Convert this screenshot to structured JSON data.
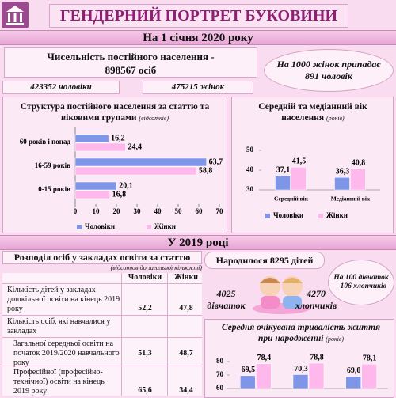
{
  "header": {
    "title": "ГЕНДЕРНИЙ ПОРТРЕТ БУКОВИНИ",
    "date_banner": "На 1 січня 2020 року"
  },
  "population": {
    "label": "Чисельність постійного населення  -",
    "total": "898567 осіб",
    "men": "423352 чоловіки",
    "women": "475215 жінок",
    "ratio": "На 1000 жінок припадає",
    "ratio_value": "891 чоловік"
  },
  "year_banner": "У 2019 році",
  "education": {
    "title": "Розподіл осіб у закладах освіти за статтю",
    "subtitle": "(відсотків до загальної кількості)",
    "columns": [
      "Чоловіки",
      "Жінки"
    ],
    "rows": [
      [
        "Кількість дітей у закладах дошкільної освіти на кінець 2019 року",
        "52,2",
        "47,8"
      ],
      [
        "Кількість осіб, які навчалися у закладах"
      ],
      [
        "Загальної середньої освіти на початок 2019/2020 навчального року",
        "51,3",
        "48,7"
      ],
      [
        "Професійної (професійно-технічної) освіти на кінець 2019 року",
        "65,6",
        "34,4"
      ]
    ]
  },
  "births": {
    "total": "Народилося 8295 дітей",
    "girls": "4025 дівчаток",
    "boys": "4270 хлопчиків",
    "ratio": "На 100 дівчаток - 106 хлопчиків"
  },
  "chart_data": [
    {
      "type": "bar",
      "orientation": "horizontal",
      "title": "Структура постійного населення за статтю та віковими групами",
      "subtitle": "(відсотків)",
      "categories": [
        "60 років і понад",
        "16-59 років",
        "0-15 років"
      ],
      "series": [
        {
          "name": "Чоловіки",
          "color": "#7f95e8",
          "values": [
            16.2,
            63.7,
            20.1
          ],
          "value_labels": [
            "16,2",
            "63,7",
            "20,1"
          ]
        },
        {
          "name": "Жінки",
          "color": "#ffb8ec",
          "values": [
            24.4,
            58.8,
            16.8
          ],
          "value_labels": [
            "24,4",
            "58,8",
            "16,8"
          ]
        }
      ],
      "xlim": [
        0,
        70
      ],
      "xticks": [
        0,
        10,
        20,
        30,
        40,
        50,
        60,
        70
      ],
      "legend": "bottom"
    },
    {
      "type": "bar",
      "orientation": "vertical",
      "title": "Середній та медіанний вік населення",
      "subtitle": "(років)",
      "categories": [
        "Середній вік",
        "Медіанний вік"
      ],
      "series": [
        {
          "name": "Чоловіки",
          "color": "#7f95e8",
          "values": [
            37.1,
            36.3
          ],
          "value_labels": [
            "37,1",
            "36,3"
          ]
        },
        {
          "name": "Жінки",
          "color": "#ffb8ec",
          "values": [
            41.5,
            40.8
          ],
          "value_labels": [
            "41,5",
            "40,8"
          ]
        }
      ],
      "ylim": [
        30,
        50
      ],
      "yticks": [
        30,
        40,
        50
      ],
      "legend": "bottom"
    },
    {
      "type": "bar",
      "orientation": "vertical",
      "title": "Середня очікувана тривалість життя при народженні",
      "subtitle": "(років)",
      "categories": [
        null,
        null,
        null
      ],
      "series": [
        {
          "color": "#7f95e8",
          "values": [
            69.5,
            70.3,
            69.0
          ],
          "value_labels": [
            "69,5",
            "70,3",
            "69,0"
          ]
        },
        {
          "color": "#ffb8ec",
          "values": [
            78.4,
            78.8,
            78.1
          ],
          "value_labels": [
            "78,4",
            "78,8",
            "78,1"
          ]
        }
      ],
      "ylim": [
        60,
        80
      ],
      "yticks": [
        60,
        70,
        80
      ]
    }
  ]
}
